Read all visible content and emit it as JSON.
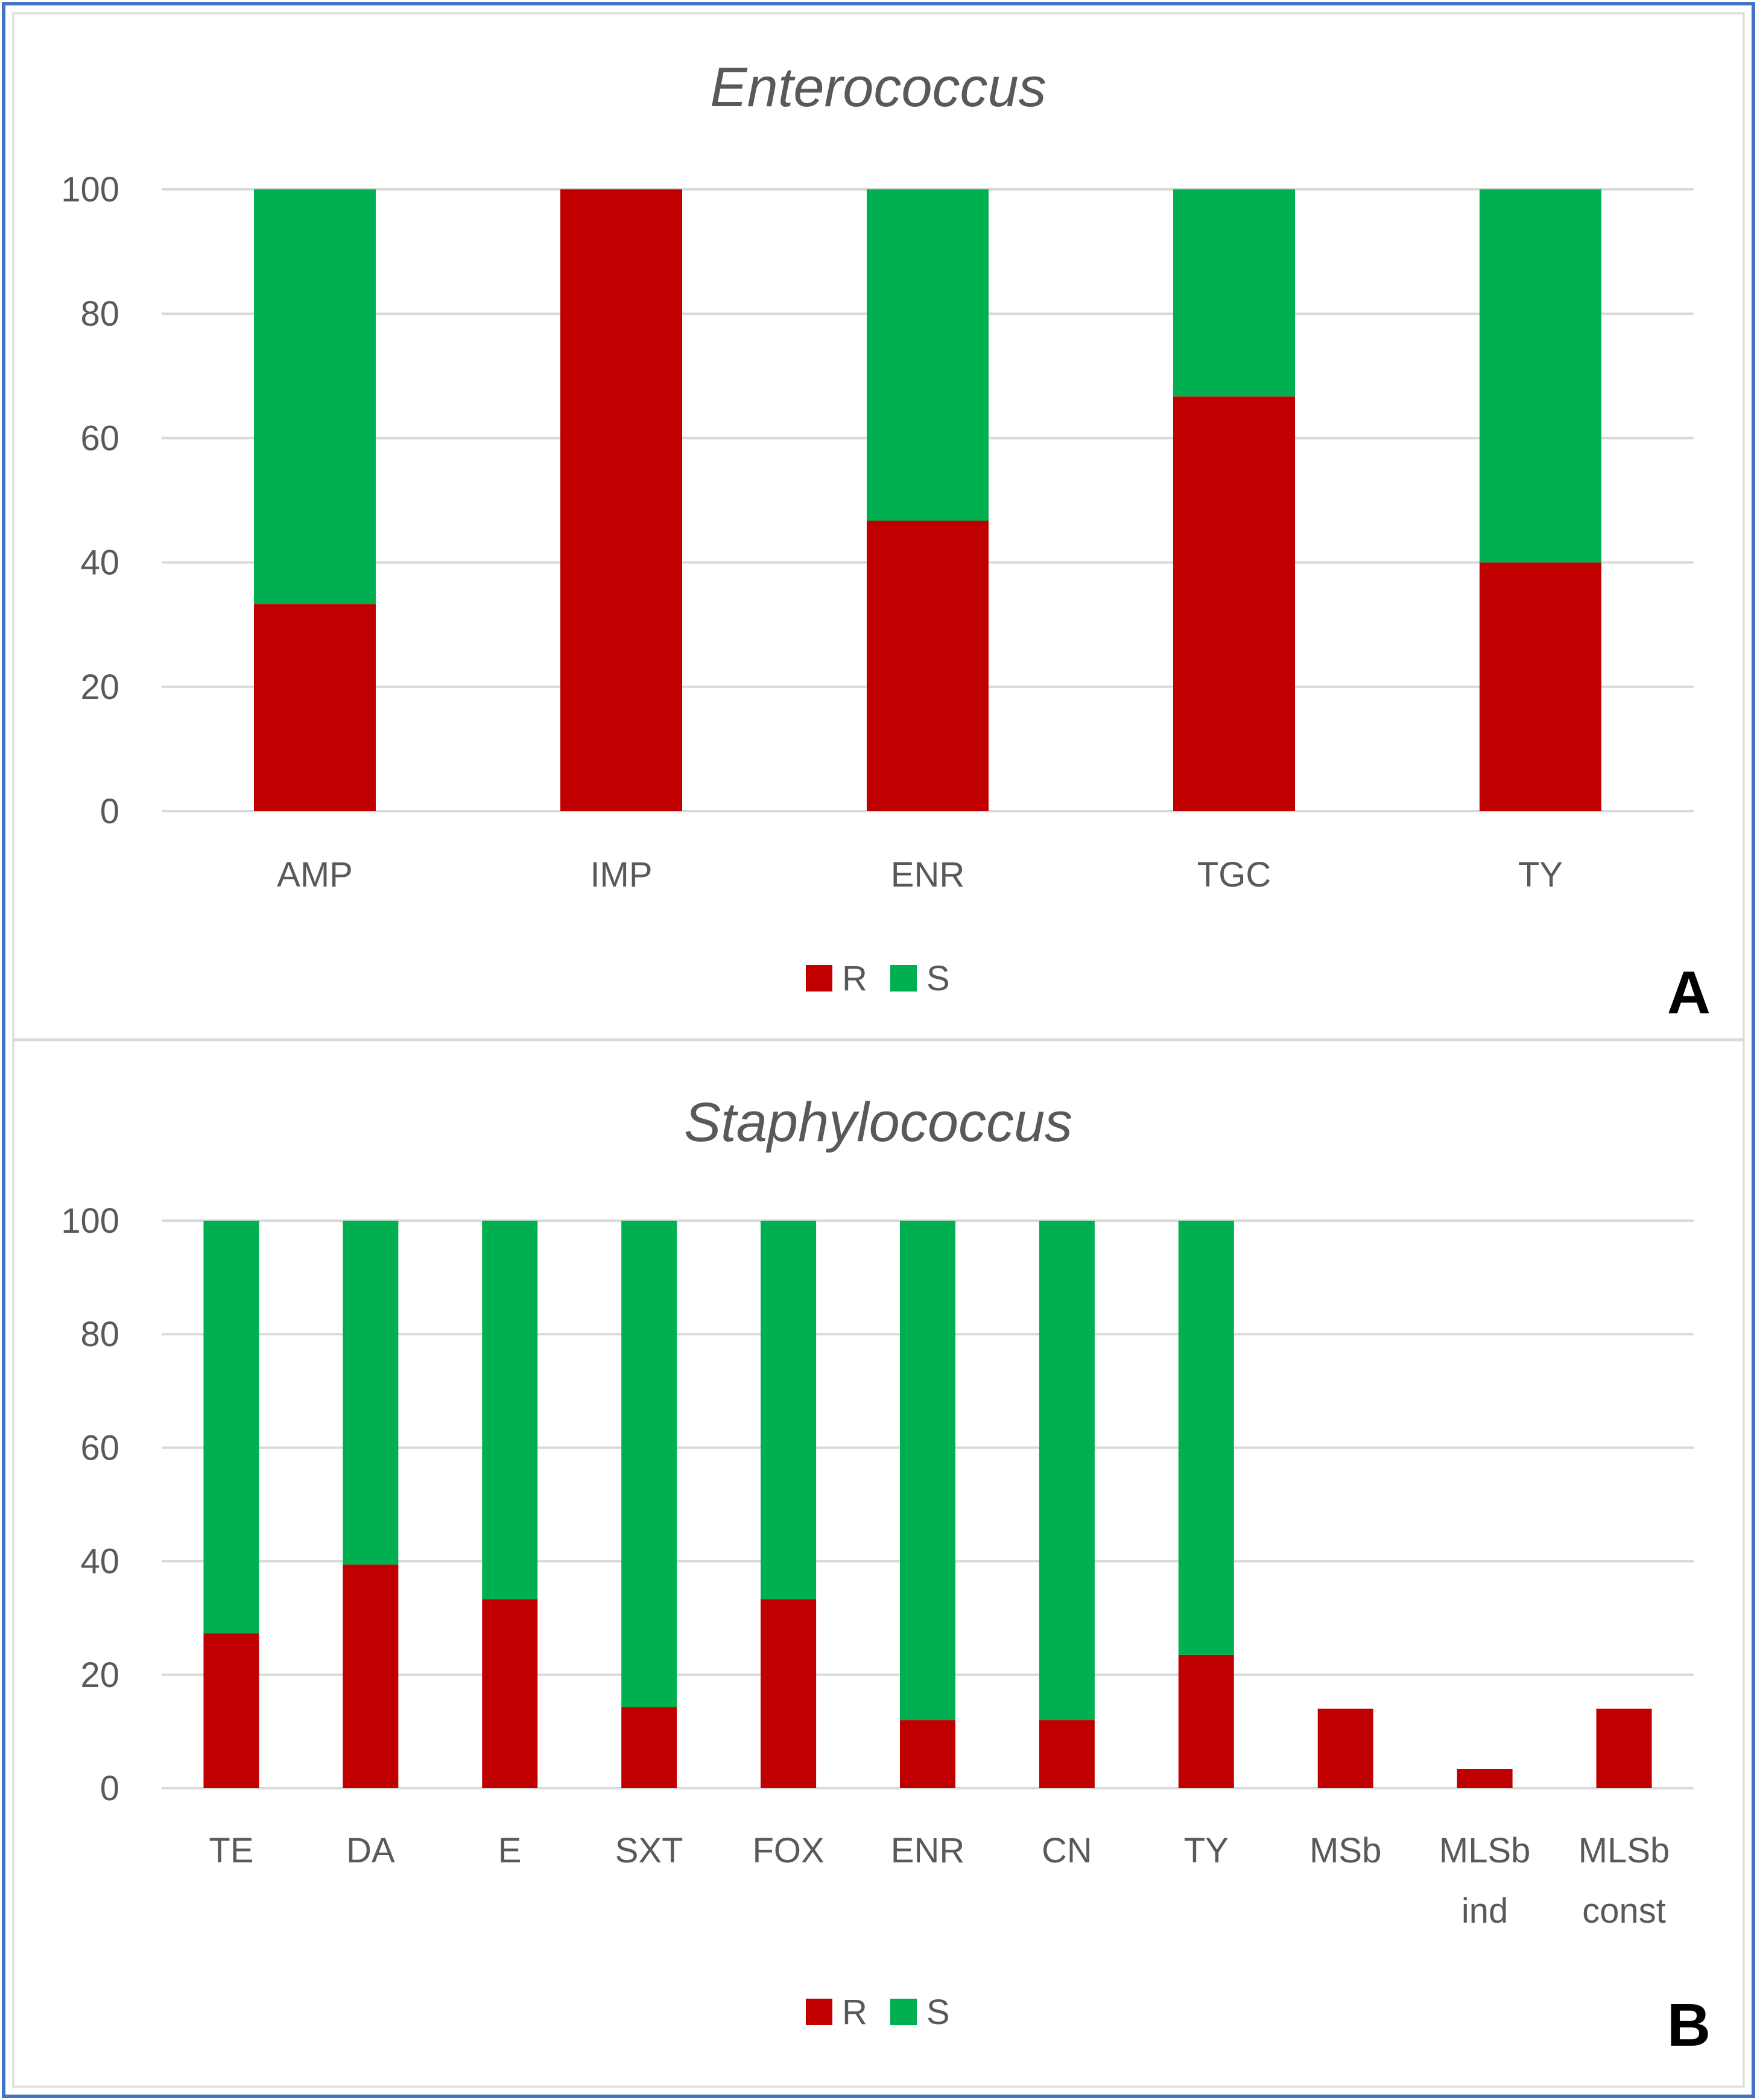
{
  "colors": {
    "R": "#c00000",
    "S": "#00b050",
    "frame": "#4472c4",
    "divider": "#d9d9d9"
  },
  "chart_data": [
    {
      "type": "bar",
      "stacked": true,
      "title": "Enterococcus",
      "panel_label": "A",
      "xlabel": "",
      "ylabel": "",
      "ylim": [
        0,
        100
      ],
      "yticks": [
        "0",
        "20",
        "40",
        "60",
        "80",
        "100"
      ],
      "grid": true,
      "legend_position": "bottom",
      "categories": [
        [
          "AMP"
        ],
        [
          "IMP"
        ],
        [
          "ENR"
        ],
        [
          "TGC"
        ],
        [
          "TY"
        ]
      ],
      "series": [
        {
          "name": "R",
          "color": "#c00000",
          "values": [
            33.3,
            100,
            46.7,
            66.7,
            40
          ]
        },
        {
          "name": "S",
          "color": "#00b050",
          "values": [
            66.7,
            0,
            53.3,
            33.3,
            60
          ]
        }
      ]
    },
    {
      "type": "bar",
      "stacked": true,
      "title": "Staphylococcus",
      "panel_label": "B",
      "xlabel": "",
      "ylabel": "",
      "ylim": [
        0,
        100
      ],
      "yticks": [
        "0",
        "20",
        "40",
        "60",
        "80",
        "100"
      ],
      "grid": true,
      "legend_position": "bottom",
      "categories": [
        [
          "TE"
        ],
        [
          "DA"
        ],
        [
          "E"
        ],
        [
          "SXT"
        ],
        [
          "FOX"
        ],
        [
          "ENR"
        ],
        [
          "CN"
        ],
        [
          "TY"
        ],
        [
          "MSb"
        ],
        [
          "MLSb",
          "ind"
        ],
        [
          "MLSb",
          "const"
        ]
      ],
      "series": [
        {
          "name": "R",
          "color": "#c00000",
          "values": [
            27.3,
            39.4,
            33.3,
            14.3,
            33.3,
            12,
            12,
            23.5,
            14,
            3.4,
            14
          ]
        },
        {
          "name": "S",
          "color": "#00b050",
          "values": [
            72.7,
            60.6,
            66.7,
            85.7,
            66.7,
            88,
            88,
            76.5,
            0,
            0,
            0
          ]
        }
      ]
    }
  ]
}
